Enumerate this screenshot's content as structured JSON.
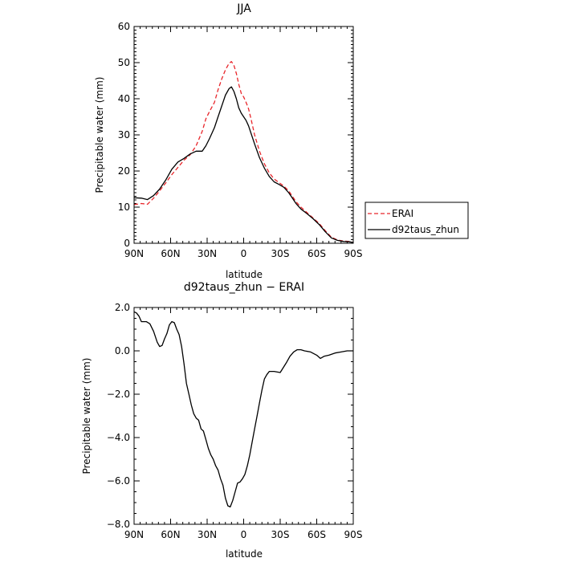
{
  "chart_data": [
    {
      "type": "line",
      "title": "JJA",
      "xlabel": "latitude",
      "ylabel": "Precipitable water (mm)",
      "xlim": [
        90,
        -90
      ],
      "ylim": [
        0,
        60
      ],
      "xticks": [
        {
          "value": 90,
          "label": "90N"
        },
        {
          "value": 60,
          "label": "60N"
        },
        {
          "value": 30,
          "label": "30N"
        },
        {
          "value": 0,
          "label": "0"
        },
        {
          "value": -30,
          "label": "30S"
        },
        {
          "value": -60,
          "label": "60S"
        },
        {
          "value": -90,
          "label": "90S"
        }
      ],
      "yticks": [
        {
          "value": 0,
          "label": "0"
        },
        {
          "value": 10,
          "label": "10"
        },
        {
          "value": 20,
          "label": "20"
        },
        {
          "value": 30,
          "label": "30"
        },
        {
          "value": 40,
          "label": "40"
        },
        {
          "value": 50,
          "label": "50"
        },
        {
          "value": 60,
          "label": "60"
        }
      ],
      "legend": "right",
      "series": [
        {
          "name": "ERAI",
          "color": "#e8262b",
          "dash": "dashed",
          "x": [
            90,
            84,
            79,
            74,
            69,
            64,
            59,
            54,
            49,
            44,
            39,
            34,
            31,
            28,
            24,
            21,
            18,
            15,
            12,
            10,
            8,
            6,
            4,
            2,
            0,
            -2,
            -4,
            -6,
            -9,
            -13,
            -17,
            -21,
            -25,
            -29,
            -33,
            -37,
            -40,
            -43,
            -47,
            -52,
            -57,
            -62,
            -67,
            -72,
            -77,
            -82,
            -87,
            -90
          ],
          "y": [
            10.7,
            11.0,
            10.8,
            12.5,
            14.5,
            16.7,
            19.0,
            21.0,
            23.0,
            24.5,
            27.0,
            31.0,
            34.5,
            36.5,
            39.0,
            42.5,
            45.5,
            48.0,
            49.8,
            50.3,
            49.2,
            47.0,
            44.0,
            41.5,
            40.5,
            39.0,
            37.2,
            34.5,
            30.0,
            25.5,
            22.0,
            19.5,
            17.8,
            16.8,
            15.8,
            14.5,
            13.0,
            11.5,
            10.0,
            8.5,
            7.0,
            5.5,
            3.5,
            1.7,
            0.9,
            0.6,
            0.5,
            0.2
          ]
        },
        {
          "name": "d92taus_zhun",
          "color": "#000000",
          "dash": "solid",
          "x": [
            90,
            84,
            79,
            74,
            69,
            64,
            59,
            54,
            49,
            44,
            39,
            34,
            31,
            28,
            24,
            21,
            18,
            15,
            12,
            10,
            8,
            6,
            4,
            2,
            0,
            -2,
            -4,
            -6,
            -9,
            -13,
            -17,
            -21,
            -25,
            -29,
            -33,
            -37,
            -40,
            -43,
            -47,
            -52,
            -57,
            -62,
            -67,
            -72,
            -77,
            -82,
            -87,
            -90
          ],
          "y": [
            12.6,
            12.5,
            12.1,
            13.2,
            15.0,
            17.5,
            20.5,
            22.5,
            23.5,
            24.7,
            25.5,
            25.5,
            27.0,
            29.0,
            32.0,
            35.0,
            38.0,
            41.0,
            42.8,
            43.3,
            42.0,
            40.0,
            37.5,
            36.0,
            35.0,
            34.0,
            32.5,
            30.5,
            27.5,
            23.7,
            20.8,
            18.5,
            17.0,
            16.3,
            15.5,
            14.0,
            12.5,
            11.0,
            9.5,
            8.2,
            6.8,
            5.2,
            3.2,
            1.5,
            0.8,
            0.5,
            0.4,
            0.2
          ]
        }
      ]
    },
    {
      "type": "line",
      "title": "d92taus_zhun − ERAI",
      "xlabel": "latitude",
      "ylabel": "Precipitable water (mm)",
      "xlim": [
        90,
        -90
      ],
      "ylim": [
        -8,
        2
      ],
      "xticks": [
        {
          "value": 90,
          "label": "90N"
        },
        {
          "value": 60,
          "label": "60N"
        },
        {
          "value": 30,
          "label": "30N"
        },
        {
          "value": 0,
          "label": "0"
        },
        {
          "value": -30,
          "label": "30S"
        },
        {
          "value": -60,
          "label": "60S"
        },
        {
          "value": -90,
          "label": "90S"
        }
      ],
      "yticks": [
        {
          "value": 2,
          "label": "2.0"
        },
        {
          "value": 0,
          "label": "0.0"
        },
        {
          "value": -2,
          "label": "−2.0"
        },
        {
          "value": -4,
          "label": "−4.0"
        },
        {
          "value": -6,
          "label": "−6.0"
        },
        {
          "value": -8,
          "label": "−8.0"
        }
      ],
      "series": [
        {
          "color": "#000000",
          "dash": "solid",
          "x": [
            90,
            88,
            86,
            84,
            80,
            77,
            74,
            71,
            69,
            67,
            65,
            63,
            61,
            59,
            57,
            55,
            53,
            51,
            49,
            47,
            45,
            43,
            41,
            39,
            37,
            35,
            33,
            31,
            29,
            27,
            25,
            23,
            21,
            19,
            17,
            15,
            13,
            11,
            9,
            7,
            5,
            3,
            1,
            -1,
            -3,
            -5,
            -7,
            -9,
            -11,
            -13,
            -15,
            -17,
            -19,
            -21,
            -25,
            -30,
            -35,
            -38,
            -41,
            -44,
            -47,
            -50,
            -55,
            -60,
            -63,
            -66,
            -70,
            -75,
            -80,
            -85,
            -90
          ],
          "y": [
            1.8,
            1.75,
            1.6,
            1.35,
            1.35,
            1.25,
            0.9,
            0.4,
            0.2,
            0.25,
            0.55,
            0.8,
            1.2,
            1.35,
            1.3,
            1.0,
            0.75,
            0.2,
            -0.6,
            -1.5,
            -2.0,
            -2.5,
            -2.9,
            -3.1,
            -3.2,
            -3.6,
            -3.7,
            -4.1,
            -4.5,
            -4.8,
            -5.0,
            -5.3,
            -5.5,
            -5.9,
            -6.2,
            -6.8,
            -7.15,
            -7.2,
            -6.9,
            -6.5,
            -6.1,
            -6.05,
            -5.9,
            -5.7,
            -5.3,
            -4.8,
            -4.2,
            -3.6,
            -3.0,
            -2.4,
            -1.8,
            -1.3,
            -1.1,
            -0.95,
            -0.95,
            -1.0,
            -0.55,
            -0.25,
            -0.05,
            0.05,
            0.05,
            0.0,
            -0.05,
            -0.2,
            -0.35,
            -0.25,
            -0.2,
            -0.1,
            -0.05,
            0.0,
            0.0
          ]
        }
      ]
    }
  ]
}
